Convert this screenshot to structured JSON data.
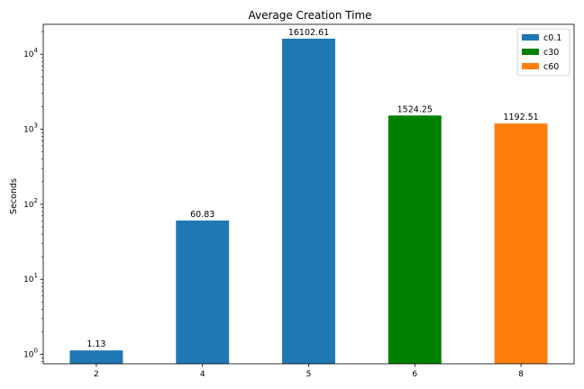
{
  "chart_data": {
    "type": "bar",
    "title": "Average Creation Time",
    "xlabel": "",
    "ylabel": "Seconds",
    "yscale": "log",
    "ylim": [
      0.75,
      25000
    ],
    "ytick_labels": [
      {
        "value": 1,
        "base": "10",
        "exp": "0"
      },
      {
        "value": 10,
        "base": "10",
        "exp": "1"
      },
      {
        "value": 100,
        "base": "10",
        "exp": "2"
      },
      {
        "value": 1000,
        "base": "10",
        "exp": "3"
      },
      {
        "value": 10000,
        "base": "10",
        "exp": "4"
      }
    ],
    "categories": [
      "2",
      "4",
      "5",
      "6",
      "8"
    ],
    "values": [
      1.13,
      60.83,
      16102.61,
      1524.25,
      1192.51
    ],
    "value_labels": [
      "1.13",
      "60.83",
      "16102.61",
      "1524.25",
      "1192.51"
    ],
    "bar_series": [
      "c0.1",
      "c0.1",
      "c0.1",
      "c30",
      "c60"
    ],
    "series": [
      {
        "name": "c0.1",
        "color": "#1f77b4"
      },
      {
        "name": "c30",
        "color": "#008000"
      },
      {
        "name": "c60",
        "color": "#ff7f0e"
      }
    ],
    "legend_position": "top-right",
    "grid": false
  }
}
